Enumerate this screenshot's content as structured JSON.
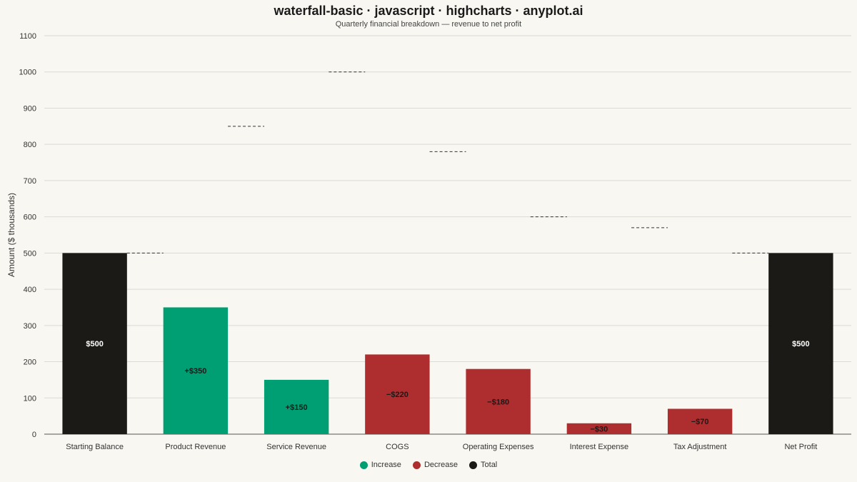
{
  "chart_data": {
    "type": "bar",
    "subtype": "waterfall",
    "title": "waterfall-basic · javascript · highcharts · anyplot.ai",
    "subtitle": "Quarterly financial breakdown — revenue to net profit",
    "xlabel": "",
    "ylabel": "Amount ($ thousands)",
    "ylim": [
      0,
      1100
    ],
    "yticks": [
      0,
      100,
      200,
      300,
      400,
      500,
      600,
      700,
      800,
      900,
      1000,
      1100
    ],
    "grid": true,
    "legend_position": "bottom-center",
    "categories": [
      "Starting Balance",
      "Product Revenue",
      "Service Revenue",
      "COGS",
      "Operating Expenses",
      "Interest Expense",
      "Tax Adjustment",
      "Net Profit"
    ],
    "values": [
      500,
      350,
      150,
      220,
      180,
      30,
      70,
      500
    ],
    "kinds": [
      "total",
      "increase",
      "increase",
      "decrease",
      "decrease",
      "decrease",
      "decrease",
      "total"
    ],
    "data_labels": [
      "$500",
      "+$350",
      "+$150",
      "−$220",
      "−$180",
      "−$30",
      "−$70",
      "$500"
    ],
    "connector_levels": [
      500,
      850,
      1000,
      780,
      600,
      570,
      null
    ],
    "legend": [
      {
        "name": "Increase",
        "kind": "increase"
      },
      {
        "name": "Decrease",
        "kind": "decrease"
      },
      {
        "name": "Total",
        "kind": "total"
      }
    ],
    "colors": {
      "increase": "#009e73",
      "decrease": "#ae2d2f",
      "total": "#1b1a16"
    }
  }
}
